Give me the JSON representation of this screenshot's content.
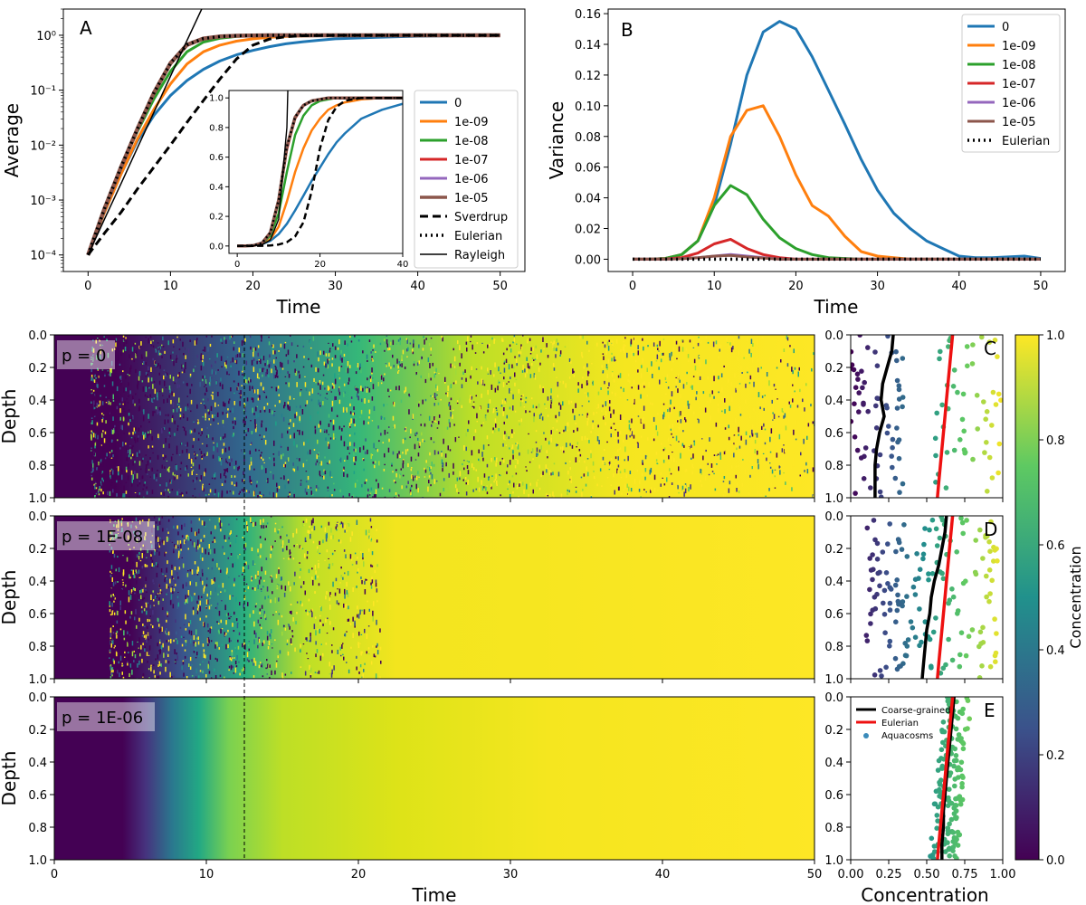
{
  "panel_a": {
    "letter": "A",
    "xlabel": "Time",
    "ylabel": "Average",
    "xticks": [
      "0",
      "10",
      "20",
      "30",
      "40",
      "50"
    ],
    "yticks": [
      "10⁻⁴",
      "10⁻³",
      "10⁻²",
      "10⁻¹",
      "10⁰"
    ],
    "inset_xticks": [
      "0",
      "20",
      "40"
    ],
    "inset_yticks": [
      "0.0",
      "0.2",
      "0.4",
      "0.6",
      "0.8",
      "1.0"
    ],
    "legend": [
      "0",
      "1e-09",
      "1e-08",
      "1e-07",
      "1e-06",
      "1e-05",
      "Sverdrup",
      "Eulerian",
      "Rayleigh"
    ]
  },
  "panel_b": {
    "letter": "B",
    "xlabel": "Time",
    "ylabel": "Variance",
    "xticks": [
      "0",
      "10",
      "20",
      "30",
      "40",
      "50"
    ],
    "yticks": [
      "0.00",
      "0.02",
      "0.04",
      "0.06",
      "0.08",
      "0.10",
      "0.12",
      "0.14",
      "0.16"
    ],
    "legend": [
      "0",
      "1e-09",
      "1e-08",
      "1e-07",
      "1e-06",
      "1e-05",
      "Eulerian"
    ]
  },
  "heatmaps": {
    "ylabel": "Depth",
    "xlabel": "Time",
    "xticks": [
      "0",
      "10",
      "20",
      "30",
      "40",
      "50"
    ],
    "yticks": [
      "0.0",
      "0.2",
      "0.4",
      "0.6",
      "0.8",
      "1.0"
    ],
    "labels": [
      "p = 0",
      "p = 1E-08",
      "p = 1E-06"
    ]
  },
  "profiles": {
    "letters": [
      "C",
      "D",
      "E"
    ],
    "xlabel": "Concentration",
    "xticks": [
      "0.00",
      "0.25",
      "0.50",
      "0.75",
      "1.00"
    ],
    "yticks": [
      "0.0",
      "0.2",
      "0.4",
      "0.6",
      "0.8",
      "1.0"
    ],
    "legend": [
      "Coarse-grained",
      "Eulerian",
      "Aquacosms"
    ]
  },
  "colorbar": {
    "label": "Concentration",
    "ticks": [
      "0.0",
      "0.2",
      "0.4",
      "0.6",
      "0.8",
      "1.0"
    ]
  },
  "colors": {
    "s0": "#1f77b4",
    "s1": "#ff7f0e",
    "s2": "#2ca02c",
    "s3": "#d62728",
    "s4": "#9467bd",
    "s5": "#8c564b",
    "black": "#000000",
    "red": "#ee1111"
  },
  "chart_data": [
    {
      "type": "line",
      "panel": "A",
      "xlabel": "Time",
      "ylabel": "Average",
      "xlim": [
        -3,
        53
      ],
      "ylim": [
        5e-05,
        3
      ],
      "yscale": "log",
      "x": [
        0,
        2,
        4,
        6,
        8,
        10,
        12,
        14,
        16,
        18,
        20,
        22,
        24,
        26,
        28,
        30,
        35,
        40,
        45,
        50
      ],
      "series": [
        {
          "name": "0",
          "values": [
            0.0001,
            0.0006,
            0.003,
            0.012,
            0.035,
            0.08,
            0.15,
            0.24,
            0.34,
            0.44,
            0.53,
            0.62,
            0.7,
            0.76,
            0.81,
            0.86,
            0.92,
            0.96,
            0.98,
            0.99
          ]
        },
        {
          "name": "1e-09",
          "values": [
            0.0001,
            0.0006,
            0.003,
            0.013,
            0.045,
            0.13,
            0.3,
            0.5,
            0.66,
            0.78,
            0.86,
            0.92,
            0.95,
            0.97,
            0.98,
            0.99,
            1.0,
            1.0,
            1.0,
            1.0
          ]
        },
        {
          "name": "1e-08",
          "values": [
            0.0001,
            0.0007,
            0.004,
            0.018,
            0.07,
            0.22,
            0.5,
            0.75,
            0.88,
            0.95,
            0.98,
            0.99,
            1.0,
            1.0,
            1.0,
            1.0,
            1.0,
            1.0,
            1.0,
            1.0
          ]
        },
        {
          "name": "1e-07",
          "values": [
            0.0001,
            0.0007,
            0.004,
            0.02,
            0.085,
            0.3,
            0.65,
            0.86,
            0.95,
            0.98,
            0.99,
            1.0,
            1.0,
            1.0,
            1.0,
            1.0,
            1.0,
            1.0,
            1.0,
            1.0
          ]
        },
        {
          "name": "1e-06",
          "values": [
            0.0001,
            0.0007,
            0.004,
            0.02,
            0.09,
            0.31,
            0.67,
            0.87,
            0.95,
            0.98,
            0.99,
            1.0,
            1.0,
            1.0,
            1.0,
            1.0,
            1.0,
            1.0,
            1.0,
            1.0
          ]
        },
        {
          "name": "1e-05",
          "values": [
            0.0001,
            0.0007,
            0.004,
            0.02,
            0.09,
            0.31,
            0.67,
            0.87,
            0.95,
            0.98,
            0.99,
            1.0,
            1.0,
            1.0,
            1.0,
            1.0,
            1.0,
            1.0,
            1.0,
            1.0
          ]
        },
        {
          "name": "Sverdrup",
          "values": [
            0.0001,
            0.00025,
            0.0006,
            0.0016,
            0.004,
            0.01,
            0.026,
            0.065,
            0.16,
            0.37,
            0.66,
            0.85,
            0.94,
            0.98,
            0.99,
            1.0,
            1.0,
            1.0,
            1.0,
            1.0
          ]
        },
        {
          "name": "Eulerian",
          "values": [
            0.0001,
            0.0007,
            0.004,
            0.02,
            0.09,
            0.31,
            0.67,
            0.87,
            0.95,
            0.98,
            0.99,
            1.0,
            1.0,
            1.0,
            1.0,
            1.0,
            1.0,
            1.0,
            1.0,
            1.0
          ]
        },
        {
          "name": "Rayleigh",
          "values": [
            0.0001,
            0.00045,
            0.002,
            0.009,
            0.04,
            0.18,
            0.8,
            3.5,
            null,
            null,
            null,
            null,
            null,
            null,
            null,
            null,
            null,
            null,
            null,
            null
          ]
        }
      ],
      "inset": {
        "xlim": [
          -2,
          40
        ],
        "ylim": [
          -0.05,
          1.05
        ],
        "yscale": "linear"
      }
    },
    {
      "type": "line",
      "panel": "B",
      "xlabel": "Time",
      "ylabel": "Variance",
      "xlim": [
        -3,
        53
      ],
      "ylim": [
        -0.008,
        0.163
      ],
      "x": [
        0,
        2,
        4,
        6,
        8,
        10,
        12,
        14,
        16,
        18,
        20,
        22,
        24,
        26,
        28,
        30,
        32,
        34,
        36,
        38,
        40,
        42,
        44,
        46,
        48,
        50
      ],
      "series": [
        {
          "name": "0",
          "values": [
            0,
            0,
            0.0005,
            0.003,
            0.012,
            0.035,
            0.075,
            0.12,
            0.148,
            0.155,
            0.15,
            0.132,
            0.11,
            0.088,
            0.065,
            0.045,
            0.03,
            0.02,
            0.012,
            0.007,
            0.002,
            0.001,
            0.001,
            0.0015,
            0.002,
            0.0005
          ]
        },
        {
          "name": "1e-09",
          "values": [
            0,
            0,
            0.0005,
            0.003,
            0.012,
            0.04,
            0.08,
            0.097,
            0.1,
            0.08,
            0.055,
            0.035,
            0.028,
            0.015,
            0.005,
            0.002,
            0.001,
            0,
            0,
            0,
            0,
            0,
            0,
            0,
            0,
            0
          ]
        },
        {
          "name": "1e-08",
          "values": [
            0,
            0,
            0.0005,
            0.003,
            0.012,
            0.035,
            0.048,
            0.042,
            0.026,
            0.014,
            0.007,
            0.003,
            0.001,
            0.0005,
            0,
            0,
            0,
            0,
            0,
            0,
            0,
            0,
            0,
            0,
            0,
            0
          ]
        },
        {
          "name": "1e-07",
          "values": [
            0,
            0,
            0.0002,
            0.001,
            0.004,
            0.01,
            0.013,
            0.007,
            0.003,
            0.001,
            0,
            0,
            0,
            0,
            0,
            0,
            0,
            0,
            0,
            0,
            0,
            0,
            0,
            0,
            0,
            0
          ]
        },
        {
          "name": "1e-06",
          "values": [
            0,
            0,
            0,
            0.0003,
            0.001,
            0.002,
            0.003,
            0.002,
            0.001,
            0,
            0,
            0,
            0,
            0,
            0,
            0,
            0,
            0,
            0,
            0,
            0,
            0,
            0,
            0,
            0,
            0
          ]
        },
        {
          "name": "1e-05",
          "values": [
            0,
            0,
            0,
            0.0003,
            0.001,
            0.002,
            0.0025,
            0.0015,
            0.0008,
            0,
            0,
            0,
            0,
            0,
            0,
            0,
            0,
            0,
            0,
            0,
            0,
            0,
            0,
            0,
            0,
            0
          ]
        },
        {
          "name": "Eulerian",
          "values": [
            0,
            0,
            0,
            0,
            0,
            0,
            0,
            0,
            0,
            0,
            0,
            0,
            0,
            0,
            0,
            0,
            0,
            0,
            0,
            0,
            0,
            0,
            0,
            0,
            0,
            0
          ]
        }
      ]
    },
    {
      "type": "heatmap",
      "panels": [
        "p = 0",
        "p = 1E-08",
        "p = 1E-06"
      ],
      "xlabel": "Time",
      "ylabel": "Depth",
      "xlim": [
        0,
        50
      ],
      "ylim": [
        1.0,
        0.0
      ],
      "vline_x": 12.5,
      "colorbar": {
        "label": "Concentration",
        "range": [
          0,
          1
        ]
      }
    },
    {
      "type": "scatter",
      "panels": [
        "C",
        "D",
        "E"
      ],
      "xlabel": "Concentration",
      "xlim": [
        0,
        1
      ],
      "ylim": [
        1.0,
        0.0
      ],
      "depth": [
        0.0,
        0.1,
        0.2,
        0.3,
        0.4,
        0.5,
        0.6,
        0.7,
        0.8,
        0.9,
        1.0
      ],
      "coarse_grained": [
        [
          0.28,
          0.27,
          0.24,
          0.21,
          0.2,
          0.22,
          0.19,
          0.17,
          0.16,
          0.16,
          0.16
        ],
        [
          0.63,
          0.62,
          0.6,
          0.58,
          0.55,
          0.53,
          0.52,
          0.5,
          0.49,
          0.48,
          0.47
        ],
        [
          0.68,
          0.67,
          0.66,
          0.65,
          0.64,
          0.63,
          0.62,
          0.61,
          0.61,
          0.6,
          0.6
        ]
      ],
      "eulerian": [
        [
          0.67,
          0.66,
          0.65,
          0.64,
          0.63,
          0.62,
          0.61,
          0.6,
          0.59,
          0.58,
          0.57
        ],
        [
          0.67,
          0.66,
          0.65,
          0.64,
          0.63,
          0.62,
          0.61,
          0.6,
          0.59,
          0.58,
          0.57
        ],
        [
          0.67,
          0.66,
          0.65,
          0.64,
          0.63,
          0.62,
          0.61,
          0.6,
          0.59,
          0.58,
          0.57
        ]
      ]
    }
  ]
}
